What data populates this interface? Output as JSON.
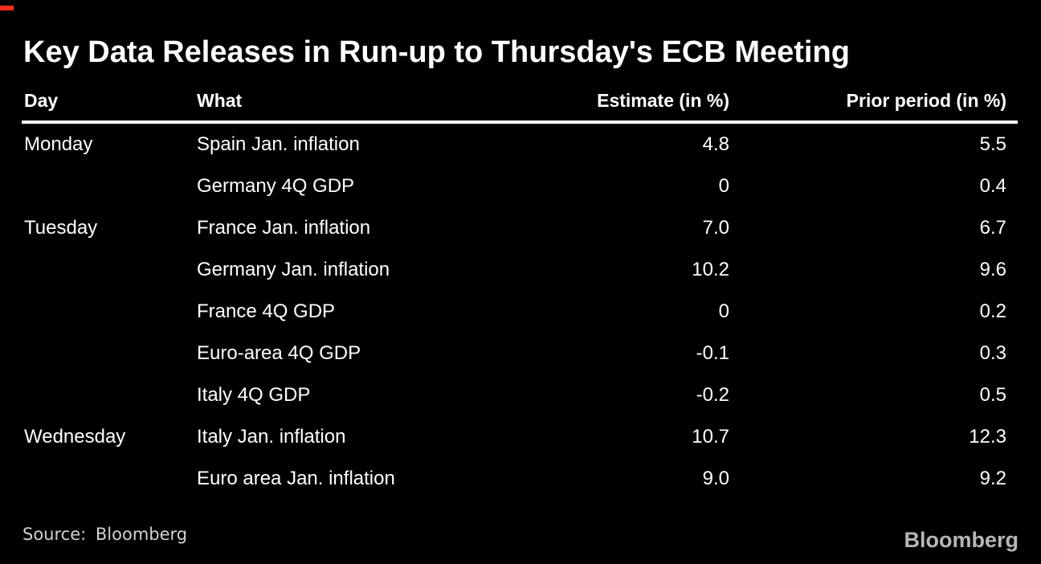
{
  "header": {
    "title": "Key Data Releases in Run-up to Thursday's ECB Meeting"
  },
  "table": {
    "columns": {
      "day": "Day",
      "what": "What",
      "estimate": "Estimate (in %)",
      "prior": "Prior period (in %)"
    },
    "rows": [
      {
        "day": "Monday",
        "what": "Spain Jan. inflation",
        "estimate": "4.8",
        "prior": "5.5"
      },
      {
        "day": "",
        "what": "Germany 4Q GDP",
        "estimate": "0",
        "prior": "0.4"
      },
      {
        "day": "Tuesday",
        "what": "France Jan. inflation",
        "estimate": "7.0",
        "prior": "6.7"
      },
      {
        "day": "",
        "what": "Germany Jan. inflation",
        "estimate": "10.2",
        "prior": "9.6"
      },
      {
        "day": "",
        "what": "France 4Q GDP",
        "estimate": "0",
        "prior": "0.2"
      },
      {
        "day": "",
        "what": "Euro-area 4Q GDP",
        "estimate": "-0.1",
        "prior": "0.3"
      },
      {
        "day": "",
        "what": "Italy 4Q GDP",
        "estimate": "-0.2",
        "prior": "0.5"
      },
      {
        "day": "Wednesday",
        "what": "Italy Jan. inflation",
        "estimate": "10.7",
        "prior": "12.3"
      },
      {
        "day": "",
        "what": "Euro area Jan. inflation",
        "estimate": "9.0",
        "prior": "9.2"
      }
    ]
  },
  "footer": {
    "source_label": "Source: Bloomberg",
    "brand": "Bloomberg"
  },
  "colors": {
    "background": "#000000",
    "text": "#ffffff",
    "rule": "#ffffff",
    "source_text": "#d2d2d2",
    "brand_text": "#b6b6b6",
    "accent_red": "#ff2e1f"
  },
  "chart_data": {
    "type": "table",
    "title": "Key Data Releases in Run-up to Thursday's ECB Meeting",
    "columns": [
      "Day",
      "What",
      "Estimate (in %)",
      "Prior period (in %)"
    ],
    "rows": [
      [
        "Monday",
        "Spain Jan. inflation",
        4.8,
        5.5
      ],
      [
        "",
        "Germany 4Q GDP",
        0,
        0.4
      ],
      [
        "Tuesday",
        "France Jan. inflation",
        7.0,
        6.7
      ],
      [
        "",
        "Germany Jan. inflation",
        10.2,
        9.6
      ],
      [
        "",
        "France 4Q GDP",
        0,
        0.2
      ],
      [
        "",
        "Euro-area 4Q GDP",
        -0.1,
        0.3
      ],
      [
        "",
        "Italy 4Q GDP",
        -0.2,
        0.5
      ],
      [
        "Wednesday",
        "Italy Jan. inflation",
        10.7,
        12.3
      ],
      [
        "",
        "Euro area Jan. inflation",
        9.0,
        9.2
      ]
    ],
    "source": "Bloomberg",
    "layout_hints": {
      "background": "black",
      "numeric_columns_right_aligned": true,
      "header_rule": "thick white line under column headers",
      "grid": "off"
    }
  }
}
